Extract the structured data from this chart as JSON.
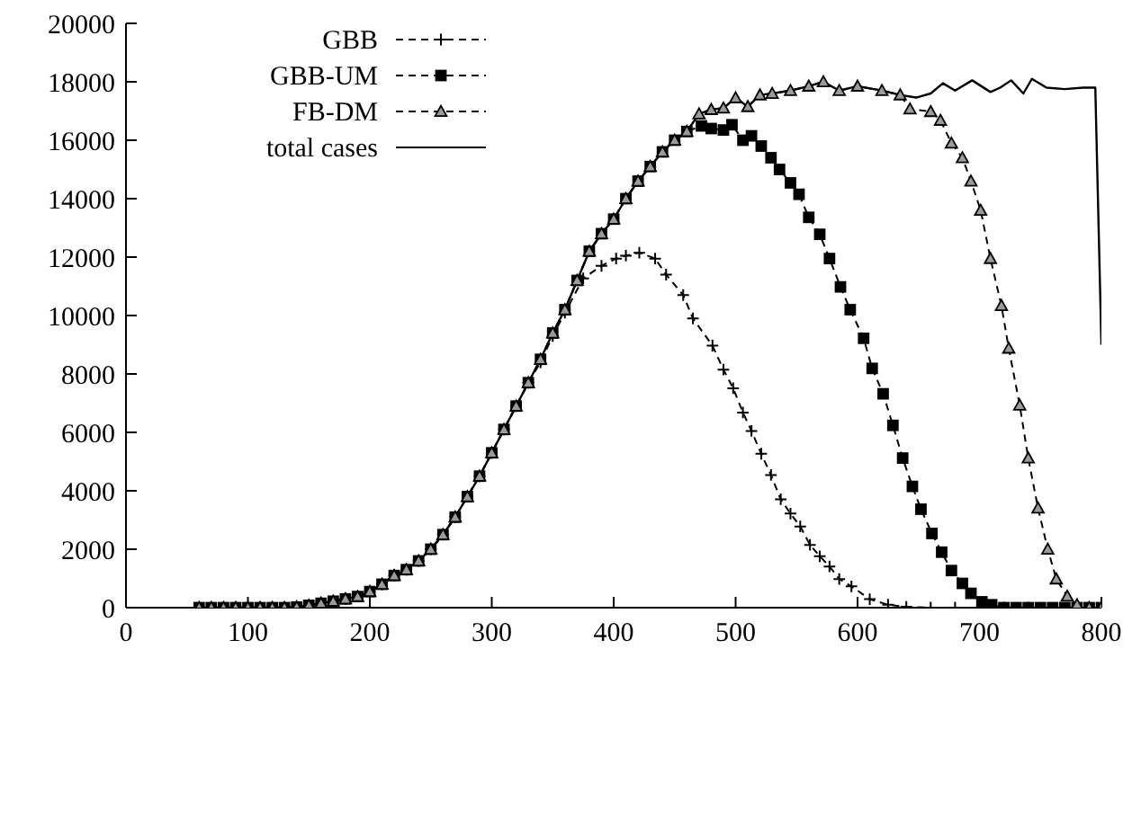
{
  "chart_data": {
    "type": "line",
    "xlim": [
      0,
      800
    ],
    "xticks": [
      0,
      100,
      200,
      300,
      400,
      500,
      600,
      700,
      800
    ],
    "ylim": [
      0,
      20000
    ],
    "yticks": [
      0,
      2000,
      4000,
      6000,
      8000,
      10000,
      12000,
      14000,
      16000,
      18000,
      20000
    ],
    "legend": "top left",
    "series": [
      {
        "name": "GBB",
        "color": "#000000",
        "marker": "cross",
        "line_style": "dashed",
        "x": [
          60,
          70,
          80,
          90,
          100,
          110,
          120,
          130,
          140,
          150,
          160,
          170,
          180,
          190,
          200,
          210,
          220,
          230,
          240,
          250,
          260,
          270,
          280,
          290,
          300,
          310,
          320,
          330,
          340,
          350,
          360,
          375,
          390,
          402,
          410,
          421,
          434,
          443,
          457,
          465,
          481,
          490,
          498,
          506,
          513,
          521,
          529,
          537,
          545,
          553,
          561,
          569,
          577,
          585,
          595,
          610,
          625,
          640,
          660,
          680,
          700,
          720,
          740
        ],
        "values": [
          0,
          0,
          0,
          0,
          0,
          0,
          0,
          0,
          20,
          80,
          150,
          220,
          300,
          380,
          550,
          800,
          1100,
          1300,
          1600,
          2000,
          2500,
          3100,
          3800,
          4500,
          5300,
          6100,
          6900,
          7700,
          8400,
          9300,
          10100,
          11270,
          11700,
          11950,
          12050,
          12150,
          11950,
          11400,
          10700,
          9900,
          8970,
          8150,
          7510,
          6680,
          6050,
          5270,
          4540,
          3710,
          3220,
          2780,
          2150,
          1760,
          1410,
          980,
          730,
          290,
          100,
          30,
          0,
          0,
          0,
          0,
          0
        ]
      },
      {
        "name": "GBB-UM",
        "color": "#000000",
        "marker": "square",
        "line_style": "dashed",
        "x": [
          60,
          70,
          80,
          90,
          100,
          110,
          120,
          130,
          140,
          150,
          160,
          170,
          180,
          190,
          200,
          210,
          220,
          230,
          240,
          250,
          260,
          270,
          280,
          290,
          300,
          310,
          320,
          330,
          340,
          350,
          360,
          370,
          380,
          390,
          400,
          410,
          420,
          430,
          440,
          450,
          460,
          472,
          480,
          490,
          497,
          506,
          513,
          521,
          529,
          536,
          545,
          552,
          560,
          569,
          577,
          586,
          594,
          605,
          612,
          621,
          629,
          637,
          645,
          652,
          661,
          669,
          677,
          686,
          693,
          702,
          710,
          720,
          730,
          740,
          750,
          760,
          770,
          780,
          790,
          800
        ],
        "values": [
          0,
          0,
          0,
          0,
          0,
          0,
          0,
          0,
          20,
          80,
          150,
          220,
          300,
          380,
          550,
          800,
          1100,
          1300,
          1600,
          2000,
          2500,
          3100,
          3800,
          4500,
          5300,
          6100,
          6900,
          7700,
          8500,
          9400,
          10200,
          11200,
          12200,
          12800,
          13300,
          14000,
          14600,
          15100,
          15600,
          16000,
          16300,
          16490,
          16400,
          16350,
          16530,
          16000,
          16150,
          15800,
          15400,
          15000,
          14540,
          14150,
          13360,
          12780,
          11950,
          10980,
          10200,
          9220,
          8190,
          7320,
          6240,
          5120,
          4150,
          3370,
          2540,
          1900,
          1270,
          830,
          490,
          200,
          100,
          0,
          0,
          0,
          0,
          0,
          0,
          0,
          0,
          0
        ]
      },
      {
        "name": "FB-DM",
        "color": "#000000",
        "marker": "triangle",
        "line_style": "dashed",
        "x": [
          60,
          70,
          80,
          90,
          100,
          110,
          120,
          130,
          140,
          150,
          160,
          170,
          180,
          190,
          200,
          210,
          220,
          230,
          240,
          250,
          260,
          270,
          280,
          290,
          300,
          310,
          320,
          330,
          340,
          350,
          360,
          370,
          380,
          390,
          400,
          410,
          420,
          430,
          440,
          450,
          460,
          470,
          480,
          490,
          500,
          510,
          520,
          530,
          545,
          560,
          572,
          585,
          600,
          620,
          635,
          643,
          660,
          668,
          677,
          686,
          693,
          701,
          709,
          718,
          724,
          733,
          740,
          748,
          756,
          763,
          772,
          780,
          790,
          800
        ],
        "values": [
          0,
          0,
          0,
          0,
          0,
          0,
          0,
          0,
          20,
          80,
          150,
          220,
          300,
          380,
          550,
          800,
          1100,
          1300,
          1600,
          2000,
          2500,
          3100,
          3800,
          4500,
          5300,
          6100,
          6900,
          7700,
          8500,
          9400,
          10200,
          11200,
          12200,
          12800,
          13300,
          14000,
          14600,
          15100,
          15600,
          16000,
          16300,
          16900,
          17050,
          17100,
          17450,
          17150,
          17550,
          17600,
          17700,
          17850,
          18000,
          17700,
          17850,
          17700,
          17550,
          17070,
          16980,
          16680,
          15900,
          15400,
          14600,
          13600,
          11950,
          10340,
          8880,
          6930,
          5120,
          3410,
          2000,
          980,
          390,
          100,
          0,
          0
        ]
      },
      {
        "name": "total cases",
        "color": "#000000",
        "marker": "none",
        "line_style": "solid",
        "x": [
          60,
          80,
          100,
          120,
          140,
          150,
          160,
          170,
          180,
          190,
          200,
          210,
          220,
          230,
          240,
          250,
          260,
          270,
          280,
          290,
          300,
          310,
          320,
          330,
          340,
          350,
          360,
          370,
          380,
          390,
          400,
          410,
          420,
          430,
          440,
          450,
          460,
          470,
          480,
          490,
          500,
          510,
          520,
          530,
          545,
          560,
          572,
          585,
          600,
          620,
          635,
          648,
          660,
          670,
          680,
          694,
          709,
          717,
          726,
          736,
          743,
          755,
          770,
          785,
          795,
          800
        ],
        "values": [
          0,
          0,
          0,
          0,
          20,
          80,
          150,
          220,
          300,
          380,
          550,
          800,
          1100,
          1300,
          1600,
          2000,
          2500,
          3100,
          3800,
          4500,
          5300,
          6100,
          6900,
          7700,
          8500,
          9400,
          10200,
          11200,
          12200,
          12800,
          13300,
          14000,
          14600,
          15100,
          15600,
          16000,
          16300,
          16900,
          17050,
          17100,
          17450,
          17150,
          17550,
          17600,
          17700,
          17850,
          18000,
          17700,
          17850,
          17700,
          17550,
          17460,
          17600,
          17950,
          17700,
          18050,
          17650,
          17800,
          18050,
          17600,
          18100,
          17800,
          17750,
          17800,
          17800,
          9000
        ]
      }
    ]
  }
}
